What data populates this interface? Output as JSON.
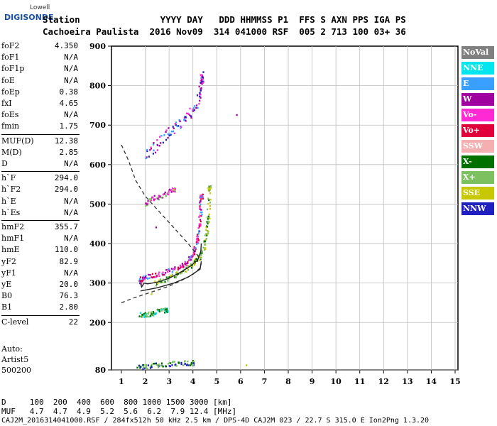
{
  "logo": {
    "company": "Lowell",
    "brand": "DIGISONDE"
  },
  "header": {
    "row1": "Station               YYYY DAY   DDD HHMMSS P1  FFS S AXN PPS IGA PS",
    "row2": "Cachoeira Paulista  2016 Nov09  314 041000 RSF  005 2 713 100 03+ 36"
  },
  "params": [
    {
      "key": "foF2",
      "value": "4.350"
    },
    {
      "key": "foF1",
      "value": "N/A"
    },
    {
      "key": "foF1p",
      "value": "N/A"
    },
    {
      "key": "foE",
      "value": "N/A"
    },
    {
      "key": "foEp",
      "value": "0.38"
    },
    {
      "key": "fxI",
      "value": "4.65"
    },
    {
      "key": "foEs",
      "value": "N/A"
    },
    {
      "key": "fmin",
      "value": "1.75"
    },
    {
      "key": "MUF(D)",
      "value": "12.38"
    },
    {
      "key": "M(D)",
      "value": "2.85"
    },
    {
      "key": "D",
      "value": "N/A"
    },
    {
      "key": "h`F",
      "value": "294.0"
    },
    {
      "key": "h`F2",
      "value": "294.0"
    },
    {
      "key": "h`E",
      "value": "N/A"
    },
    {
      "key": "h`Es",
      "value": "N/A"
    },
    {
      "key": "hmF2",
      "value": "355.7"
    },
    {
      "key": "hmF1",
      "value": "N/A"
    },
    {
      "key": "hmE",
      "value": "110.0"
    },
    {
      "key": "yF2",
      "value": "82.9"
    },
    {
      "key": "yF1",
      "value": "N/A"
    },
    {
      "key": "yE",
      "value": "20.0"
    },
    {
      "key": "B0",
      "value": "76.3"
    },
    {
      "key": "B1",
      "value": "2.80"
    },
    {
      "key": "C-level",
      "value": "22"
    }
  ],
  "auto": {
    "line1": "Auto:",
    "line2": "Artist5",
    "line3": "500200"
  },
  "legend": [
    {
      "label": "NoVal",
      "color": "#808080"
    },
    {
      "label": "NNE",
      "color": "#00e5ee"
    },
    {
      "label": "E",
      "color": "#3aa0ff"
    },
    {
      "label": "W",
      "color": "#a000a0"
    },
    {
      "label": "Vo-",
      "color": "#ff2ad4"
    },
    {
      "label": "Vo+",
      "color": "#e0003a"
    },
    {
      "label": "SSW",
      "color": "#f4b0b0"
    },
    {
      "label": "X-",
      "color": "#007000"
    },
    {
      "label": "X+",
      "color": "#7cc060"
    },
    {
      "label": "SSE",
      "color": "#c8c800"
    },
    {
      "label": "NNW",
      "color": "#2020c0"
    }
  ],
  "bottom": {
    "d_row": "D     100  200  400  600  800 1000 1500 3000 [km]",
    "muf_row": "MUF   4.7  4.7  4.9  5.2  5.6  6.2  7.9 12.4 [MHz]",
    "footer": "CAJ2M_2016314041000.RSF / 284fx512h 50 kHz 2.5 km / DPS-4D CAJ2M 023 / 22.7 S 315.0 E Ion2Png 1.3.20"
  },
  "chart_data": {
    "type": "scatter",
    "xlim": [
      1,
      15
    ],
    "ylim": [
      80,
      900
    ],
    "xticks": [
      1,
      2,
      3,
      4,
      5,
      6,
      7,
      8,
      9,
      10,
      11,
      12,
      13,
      14,
      15
    ],
    "yticks": [
      80,
      200,
      300,
      400,
      500,
      600,
      700,
      800,
      900
    ],
    "grid": true,
    "traces": {
      "ordinary_trace": [
        [
          1.8,
          300
        ],
        [
          1.85,
          310
        ],
        [
          2.0,
          315
        ],
        [
          2.5,
          322
        ],
        [
          3.0,
          330
        ],
        [
          3.5,
          342
        ],
        [
          3.8,
          355
        ],
        [
          4.0,
          372
        ],
        [
          4.15,
          395
        ],
        [
          4.25,
          430
        ],
        [
          4.32,
          470
        ],
        [
          4.36,
          520
        ]
      ],
      "extraordinary_trace": [
        [
          2.4,
          300
        ],
        [
          2.8,
          308
        ],
        [
          3.2,
          318
        ],
        [
          3.6,
          332
        ],
        [
          4.0,
          348
        ],
        [
          4.3,
          368
        ],
        [
          4.5,
          395
        ],
        [
          4.6,
          430
        ],
        [
          4.65,
          470
        ],
        [
          4.7,
          540
        ]
      ],
      "second_hop_trace": [
        [
          2.0,
          620
        ],
        [
          2.5,
          650
        ],
        [
          3.0,
          680
        ],
        [
          3.4,
          700
        ],
        [
          3.8,
          720
        ],
        [
          4.2,
          760
        ],
        [
          4.35,
          800
        ],
        [
          4.4,
          820
        ]
      ],
      "e_region_echoes": [
        [
          1.8,
          220
        ],
        [
          2.0,
          218
        ],
        [
          2.2,
          222
        ],
        [
          2.5,
          228
        ],
        [
          2.9,
          232
        ]
      ],
      "es_echoes": [
        [
          1.7,
          88
        ],
        [
          2.0,
          88
        ],
        [
          2.5,
          92
        ],
        [
          3.0,
          95
        ],
        [
          3.5,
          97
        ],
        [
          4.0,
          98
        ]
      ],
      "spread_echoes": [
        [
          2.0,
          500
        ],
        [
          2.4,
          515
        ],
        [
          2.8,
          525
        ],
        [
          3.2,
          535
        ]
      ],
      "isolated_echoes": [
        [
          5.8,
          722
        ],
        [
          6.2,
          92
        ],
        [
          3.2,
          540
        ],
        [
          2.5,
          442
        ],
        [
          2.3,
          272
        ]
      ]
    },
    "profile_curve": [
      [
        1.8,
        300
      ],
      [
        1.85,
        290
      ],
      [
        1.95,
        300
      ],
      [
        2.1,
        298
      ],
      [
        2.5,
        302
      ],
      [
        3.0,
        312
      ],
      [
        3.5,
        328
      ],
      [
        3.9,
        343
      ],
      [
        4.2,
        358
      ],
      [
        4.33,
        380
      ],
      [
        4.35,
        400
      ]
    ],
    "profile_solid_lower": [
      [
        1.8,
        280
      ],
      [
        2.5,
        288
      ],
      [
        3.2,
        300
      ],
      [
        3.8,
        315
      ],
      [
        4.3,
        335
      ],
      [
        4.35,
        355
      ]
    ],
    "mufd_curve_dashed": [
      [
        1.0,
        650
      ],
      [
        1.3,
        610
      ],
      [
        1.6,
        560
      ],
      [
        2.0,
        520
      ],
      [
        2.6,
        480
      ],
      [
        3.2,
        440
      ],
      [
        3.8,
        400
      ],
      [
        4.2,
        370
      ],
      [
        4.35,
        358
      ]
    ],
    "lower_dashed": [
      [
        1.0,
        250
      ],
      [
        1.5,
        262
      ],
      [
        2.0,
        272
      ],
      [
        2.5,
        282
      ],
      [
        3.0,
        292
      ],
      [
        3.5,
        306
      ],
      [
        4.0,
        322
      ],
      [
        4.3,
        338
      ],
      [
        4.35,
        350
      ]
    ]
  }
}
